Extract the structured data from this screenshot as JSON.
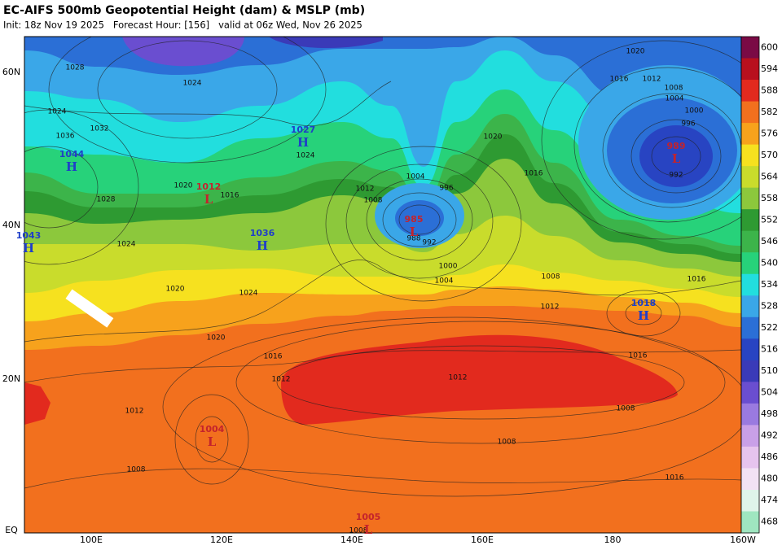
{
  "header": {
    "title": "EC-AIFS 500mb Geopotential Height (dam) & MSLP (mb)",
    "subtitle": "Init: 18z Nov 19 2025   Forecast Hour: [156]   valid at 06z Wed, Nov 26 2025"
  },
  "lat_labels": [
    "60N",
    "40N",
    "20N",
    "EQ"
  ],
  "lon_labels": [
    "100E",
    "120E",
    "140E",
    "160E",
    "180",
    "160W"
  ],
  "colorbar": {
    "ticks": [
      600,
      594,
      588,
      582,
      576,
      570,
      564,
      558,
      552,
      546,
      540,
      534,
      528,
      522,
      516,
      510,
      504,
      498,
      492,
      486,
      480,
      474,
      468
    ],
    "colors": [
      "#7a0a45",
      "#b8101e",
      "#e22a1e",
      "#f2701e",
      "#f7a21c",
      "#f6e11f",
      "#c9dc2c",
      "#8cc83c",
      "#2e9a32",
      "#3cb44a",
      "#27d27a",
      "#22dede",
      "#3aa7e8",
      "#2b6fd6",
      "#2844c2",
      "#3a3ab8",
      "#6a4ed0",
      "#9a7ae0",
      "#c9a0e8",
      "#e6c4ee",
      "#f2e2f4",
      "#dff4ea",
      "#9fe6c0"
    ]
  },
  "pressure_centers": [
    {
      "symbol": "H",
      "value": 1044
    },
    {
      "symbol": "H",
      "value": 1043
    },
    {
      "symbol": "L",
      "value": 1012
    },
    {
      "symbol": "H",
      "value": 1027
    },
    {
      "symbol": "H",
      "value": 1036
    },
    {
      "symbol": "L",
      "value": 985
    },
    {
      "symbol": "L",
      "value": 989
    },
    {
      "symbol": "H",
      "value": 1018
    },
    {
      "symbol": "L",
      "value": 1004
    },
    {
      "symbol": "L",
      "value": 1005
    }
  ],
  "isobar_labels": [
    "1028",
    "1024",
    "1024",
    "1032",
    "1036",
    "1020",
    "1016",
    "1024",
    "1028",
    "1024",
    "1020",
    "1012",
    "1008",
    "1004",
    "996",
    "988",
    "992",
    "1000",
    "1004",
    "1008",
    "1012",
    "1016",
    "1020",
    "1020",
    "1016",
    "1012",
    "1008",
    "1004",
    "1000",
    "996",
    "992",
    "1016",
    "1016",
    "1012",
    "1012",
    "1008",
    "1008",
    "1016",
    "1024",
    "1020",
    "1016",
    "1012",
    "1008",
    "1008"
  ]
}
